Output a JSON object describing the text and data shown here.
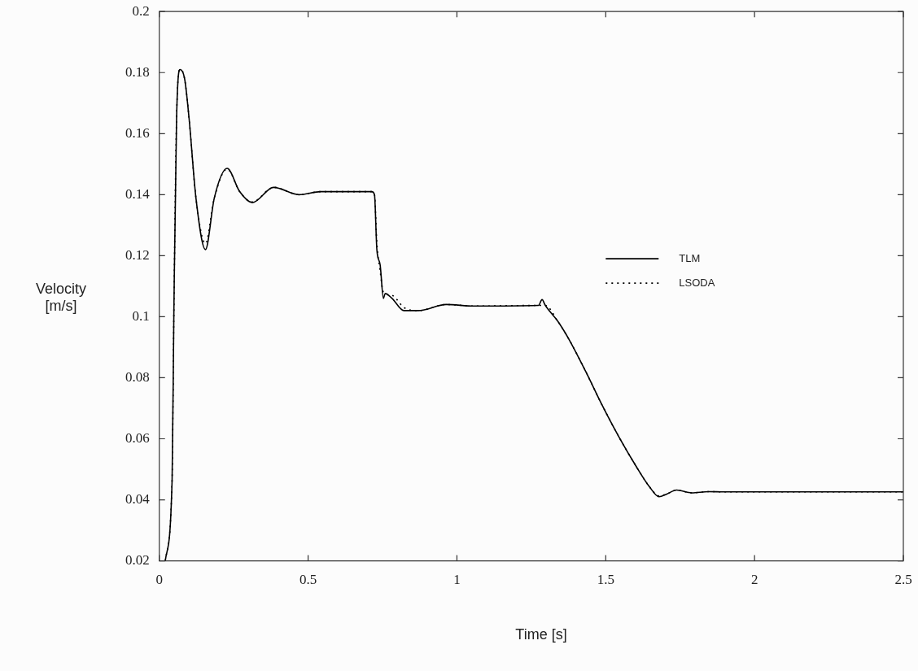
{
  "chart_data": {
    "type": "line",
    "xlabel": "Time [s]",
    "ylabel": "Velocity [m/s]",
    "xlim": [
      0,
      2.5
    ],
    "xticks": [
      0,
      0.5,
      1,
      1.5,
      2,
      2.5
    ],
    "ylim": [
      0.02,
      0.2
    ],
    "yticks": [
      0.02,
      0.04,
      0.06,
      0.08,
      0.1,
      0.12,
      0.14,
      0.16,
      0.18,
      0.2
    ],
    "grid": false,
    "legend": "right",
    "marker": "none",
    "series": [
      {
        "name": "TLM",
        "color": "#000000",
        "line_style": "solid",
        "x": [
          0.02,
          0.043,
          0.049,
          0.058,
          0.07,
          0.085,
          0.1,
          0.123,
          0.155,
          0.185,
          0.228,
          0.27,
          0.3125,
          0.384,
          0.469,
          0.543,
          0.714,
          0.723,
          0.731,
          0.742,
          0.753,
          0.759,
          0.782,
          0.822,
          0.87,
          0.964,
          1.058,
          1.274,
          1.286,
          1.297,
          1.339,
          1.377,
          1.433,
          1.489,
          1.545,
          1.602,
          1.649,
          1.679,
          1.705,
          1.738,
          1.789,
          1.845,
          1.9,
          2.09,
          2.5
        ],
        "values": [
          0.02,
          0.0465,
          0.102,
          0.165,
          0.181,
          0.178,
          0.165,
          0.139,
          0.122,
          0.139,
          0.1486,
          0.141,
          0.1374,
          0.1424,
          0.14,
          0.141,
          0.141,
          0.14,
          0.122,
          0.117,
          0.106,
          0.1076,
          0.106,
          0.102,
          0.102,
          0.104,
          0.1035,
          0.1037,
          0.1056,
          0.1037,
          0.0985,
          0.0925,
          0.082,
          0.0708,
          0.0605,
          0.051,
          0.044,
          0.041,
          0.0419,
          0.0432,
          0.0423,
          0.0427,
          0.0426,
          0.0426,
          0.0426
        ]
      },
      {
        "name": "LSODA",
        "color": "#000000",
        "line_style": "dotted",
        "x": [
          0.02,
          0.043,
          0.049,
          0.058,
          0.07,
          0.085,
          0.1,
          0.123,
          0.155,
          0.185,
          0.228,
          0.27,
          0.3125,
          0.384,
          0.469,
          0.543,
          0.714,
          0.723,
          0.731,
          0.742,
          0.753,
          0.782,
          0.822,
          0.87,
          0.964,
          1.058,
          1.274,
          1.297,
          1.339,
          1.377,
          1.433,
          1.489,
          1.545,
          1.602,
          1.649,
          1.679,
          1.705,
          1.738,
          1.789,
          1.845,
          1.9,
          2.09,
          2.5
        ],
        "values": [
          0.02,
          0.0465,
          0.102,
          0.165,
          0.181,
          0.178,
          0.165,
          0.139,
          0.124,
          0.139,
          0.1484,
          0.141,
          0.1376,
          0.1424,
          0.14,
          0.141,
          0.141,
          0.14,
          0.124,
          0.115,
          0.108,
          0.107,
          0.103,
          0.102,
          0.104,
          0.1035,
          0.1037,
          0.1037,
          0.0985,
          0.0925,
          0.082,
          0.0708,
          0.0605,
          0.051,
          0.044,
          0.0413,
          0.0419,
          0.0432,
          0.0423,
          0.0427,
          0.0426,
          0.0426,
          0.0426
        ]
      }
    ]
  }
}
